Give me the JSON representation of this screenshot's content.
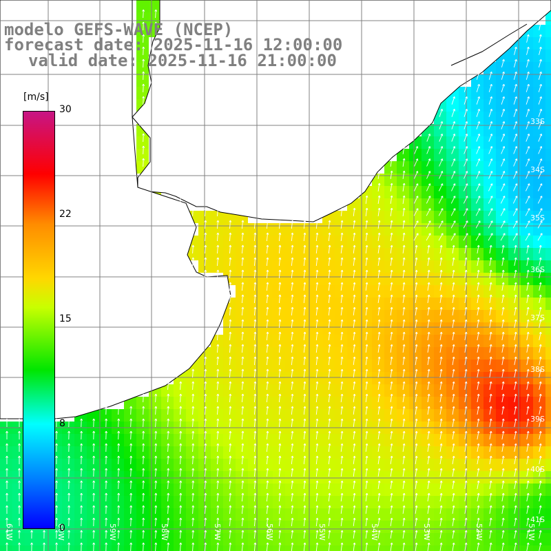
{
  "title": {
    "line1": "modelo GEFS-WAVE (NCEP)",
    "line2": "forecast date: 2025-11-16 12:00:00",
    "line3": "valid date: 2025-11-16 21:00:00"
  },
  "colorbar": {
    "unit": "[m/s]",
    "ticks": [
      "30",
      "22",
      "15",
      "8",
      "0"
    ],
    "colors": [
      "#c71585",
      "#ff0000",
      "#ff8c00",
      "#ffd700",
      "#c8ff00",
      "#00e600",
      "#00ffff",
      "#0080ff",
      "#0000ff"
    ]
  },
  "map": {
    "lon_labels": [
      "61W",
      "60W",
      "59W",
      "58W",
      "57W",
      "56W",
      "55W",
      "54W",
      "53W",
      "52W",
      "51W"
    ],
    "lat_labels": [
      "33S",
      "34S",
      "35S",
      "36S",
      "37S",
      "38S",
      "39S",
      "40S",
      "41S"
    ],
    "land_color": "#ffffff",
    "coast_color": "#000000",
    "arrow_color": "#ffffff",
    "grid_color": "#808080"
  }
}
